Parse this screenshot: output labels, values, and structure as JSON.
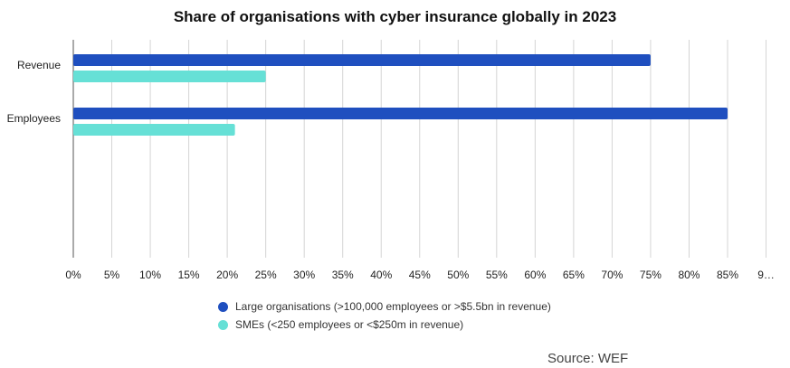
{
  "chart_data": {
    "type": "bar",
    "orientation": "horizontal",
    "title": "Share of organisations with cyber insurance globally in 2023",
    "categories": [
      "Revenue",
      "Employees"
    ],
    "series": [
      {
        "name": "Large organisations (>100,000 employees or >$5.5bn in revenue)",
        "values": [
          75,
          85
        ],
        "color": "#1f4fbf"
      },
      {
        "name": "SMEs (<250 employees or <$250m in revenue)",
        "values": [
          25,
          21
        ],
        "color": "#66e0d6"
      }
    ],
    "x_ticks": [
      "0%",
      "5%",
      "10%",
      "15%",
      "20%",
      "25%",
      "30%",
      "35%",
      "40%",
      "45%",
      "50%",
      "55%",
      "60%",
      "65%",
      "70%",
      "75%",
      "80%",
      "85%",
      "9…"
    ],
    "xlim": [
      0,
      90
    ],
    "grid": true,
    "legend_position": "bottom"
  },
  "source": "Source: WEF"
}
